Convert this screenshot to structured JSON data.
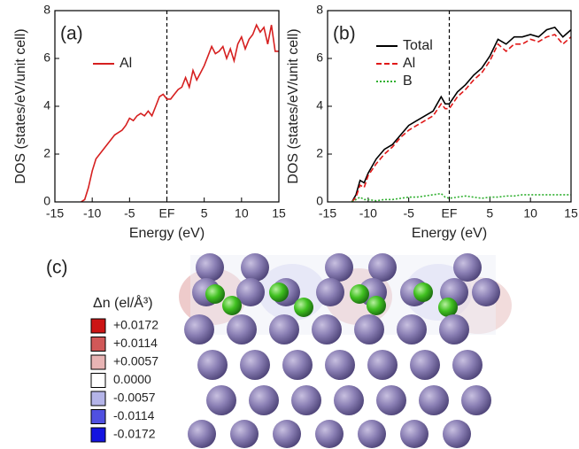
{
  "chart_data": [
    {
      "type": "line",
      "title": "(a)",
      "xlabel": "Energy (eV)",
      "ylabel": "DOS (states/eV/unit cell)",
      "xlim": [
        -15,
        15
      ],
      "xticks": [
        -15,
        -10,
        -5,
        {
          "value": 0,
          "label": "EF"
        },
        5,
        10,
        15
      ],
      "ylim": [
        0,
        8
      ],
      "yticks": [
        0,
        2,
        4,
        6,
        8
      ],
      "x": [
        -11.5,
        -11,
        -10.5,
        -10,
        -9.5,
        -9,
        -8.5,
        -8,
        -7.5,
        -7,
        -6.5,
        -6,
        -5.5,
        -5,
        -4.5,
        -4,
        -3.5,
        -3,
        -2.5,
        -2,
        -1.5,
        -1,
        -0.5,
        0,
        0.5,
        1,
        1.5,
        2,
        2.5,
        3,
        3.5,
        4,
        4.5,
        5,
        5.5,
        6,
        6.5,
        7,
        7.5,
        8,
        8.5,
        9,
        9.5,
        10,
        10.5,
        11,
        11.5,
        12,
        12.5,
        13,
        13.5,
        14,
        14.5,
        15
      ],
      "series": [
        {
          "name": "Al",
          "color": "#d62020",
          "dash": "none",
          "values": [
            0,
            0.1,
            0.6,
            1.3,
            1.8,
            2.0,
            2.2,
            2.4,
            2.6,
            2.8,
            2.9,
            3.0,
            3.2,
            3.5,
            3.4,
            3.6,
            3.7,
            3.6,
            3.8,
            3.6,
            4.0,
            4.4,
            4.5,
            4.3,
            4.3,
            4.5,
            4.7,
            4.8,
            5.2,
            4.8,
            5.5,
            5.1,
            5.4,
            5.7,
            6.1,
            6.5,
            6.2,
            6.3,
            6.5,
            6.0,
            6.4,
            5.9,
            6.6,
            6.9,
            6.4,
            6.8,
            7.0,
            7.4,
            7.1,
            7.3,
            6.6,
            7.4,
            6.3,
            6.3
          ]
        }
      ]
    },
    {
      "type": "line",
      "title": "(b)",
      "xlabel": "Energy (eV)",
      "ylabel": "DOS (states/eV/unit cell)",
      "xlim": [
        -15,
        15
      ],
      "xticks": [
        -15,
        -10,
        -5,
        {
          "value": 0,
          "label": "EF"
        },
        5,
        10,
        15
      ],
      "ylim": [
        0,
        8
      ],
      "yticks": [
        0,
        2,
        4,
        6,
        8
      ],
      "x": [
        -12,
        -11.5,
        -11,
        -10.5,
        -10,
        -9,
        -8,
        -7,
        -6,
        -5,
        -4,
        -3,
        -2,
        -1,
        -0.5,
        0,
        1,
        2,
        3,
        4,
        5,
        6,
        7,
        8,
        9,
        10,
        11,
        12,
        13,
        14,
        15
      ],
      "series": [
        {
          "name": "Total",
          "color": "#000000",
          "dash": "none",
          "values": [
            0,
            0.3,
            0.9,
            0.8,
            1.2,
            1.8,
            2.2,
            2.4,
            2.8,
            3.2,
            3.4,
            3.6,
            3.8,
            4.4,
            4.1,
            4.1,
            4.6,
            4.9,
            5.3,
            5.6,
            6.1,
            6.8,
            6.6,
            6.9,
            6.9,
            7.0,
            6.9,
            7.2,
            7.3,
            6.9,
            7.2
          ]
        },
        {
          "name": "Al",
          "color": "#e01818",
          "dash": "6 3",
          "values": [
            0,
            0.2,
            0.7,
            0.6,
            1.1,
            1.6,
            2.0,
            2.3,
            2.7,
            3.0,
            3.2,
            3.4,
            3.6,
            4.1,
            3.9,
            3.9,
            4.4,
            4.7,
            5.1,
            5.4,
            5.9,
            6.6,
            6.3,
            6.6,
            6.6,
            6.8,
            6.7,
            6.9,
            7.0,
            6.6,
            6.9
          ]
        },
        {
          "name": "B",
          "color": "#30b030",
          "dash": "2 2",
          "values": [
            0,
            0.1,
            0.2,
            0.1,
            0.1,
            0.05,
            0.1,
            0.1,
            0.15,
            0.2,
            0.2,
            0.25,
            0.3,
            0.35,
            0.2,
            0.15,
            0.2,
            0.25,
            0.2,
            0.15,
            0.2,
            0.2,
            0.25,
            0.25,
            0.3,
            0.3,
            0.3,
            0.3,
            0.3,
            0.3,
            0.3
          ]
        }
      ]
    }
  ],
  "panel_c": {
    "label": "(c)",
    "legend_title": "Δn (el/Å³)",
    "legend": [
      {
        "label": "+0.0172",
        "color": "#cc1414"
      },
      {
        "label": "+0.0114",
        "color": "#d05858"
      },
      {
        "label": "+0.0057",
        "color": "#e8b4b4"
      },
      {
        "label": "0.0000",
        "color": "#ffffff"
      },
      {
        "label": "-0.0057",
        "color": "#b4b4e8"
      },
      {
        "label": "-0.0114",
        "color": "#5050e0"
      },
      {
        "label": "-0.0172",
        "color": "#1414e0"
      }
    ]
  }
}
